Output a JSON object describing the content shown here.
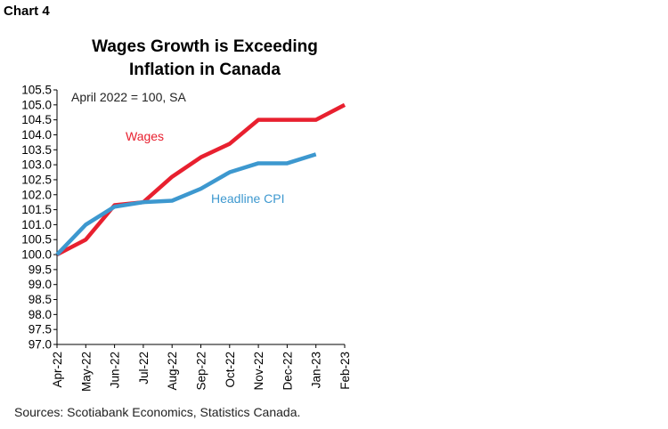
{
  "header": {
    "chart_label": "Chart 4",
    "title_line1": "Wages Growth is Exceeding",
    "title_line2": "Inflation in Canada"
  },
  "footer": {
    "source": "Sources: Scotiabank Economics, Statistics Canada."
  },
  "colors": {
    "wages": "#e8202f",
    "cpi": "#3d98cf",
    "axis": "#000000"
  },
  "chart_data": {
    "type": "line",
    "title": "Wages Growth is Exceeding Inflation in Canada",
    "subtitle": "April 2022 = 100, SA",
    "xlabel": "",
    "ylabel": "",
    "categories": [
      "Apr-22",
      "May-22",
      "Jun-22",
      "Jul-22",
      "Aug-22",
      "Sep-22",
      "Oct-22",
      "Nov-22",
      "Dec-22",
      "Jan-23",
      "Feb-23"
    ],
    "series": [
      {
        "name": "Wages",
        "values": [
          100.0,
          100.5,
          101.65,
          101.75,
          102.6,
          103.25,
          103.7,
          104.5,
          104.5,
          104.5,
          105.0
        ]
      },
      {
        "name": "Headline CPI",
        "values": [
          100.0,
          101.0,
          101.6,
          101.75,
          101.8,
          102.2,
          102.75,
          103.05,
          103.05,
          103.35,
          null
        ]
      }
    ],
    "ylim": [
      97.0,
      105.5
    ],
    "yticks": [
      "97.0",
      "97.5",
      "98.0",
      "98.5",
      "99.0",
      "99.5",
      "100.0",
      "100.5",
      "101.0",
      "101.5",
      "102.0",
      "102.5",
      "103.0",
      "103.5",
      "104.0",
      "104.5",
      "105.0",
      "105.5"
    ],
    "grid": false,
    "annotations": [
      {
        "text": "April 2022 = 100, SA"
      },
      {
        "text": "Wages"
      },
      {
        "text": "Headline CPI"
      }
    ]
  }
}
